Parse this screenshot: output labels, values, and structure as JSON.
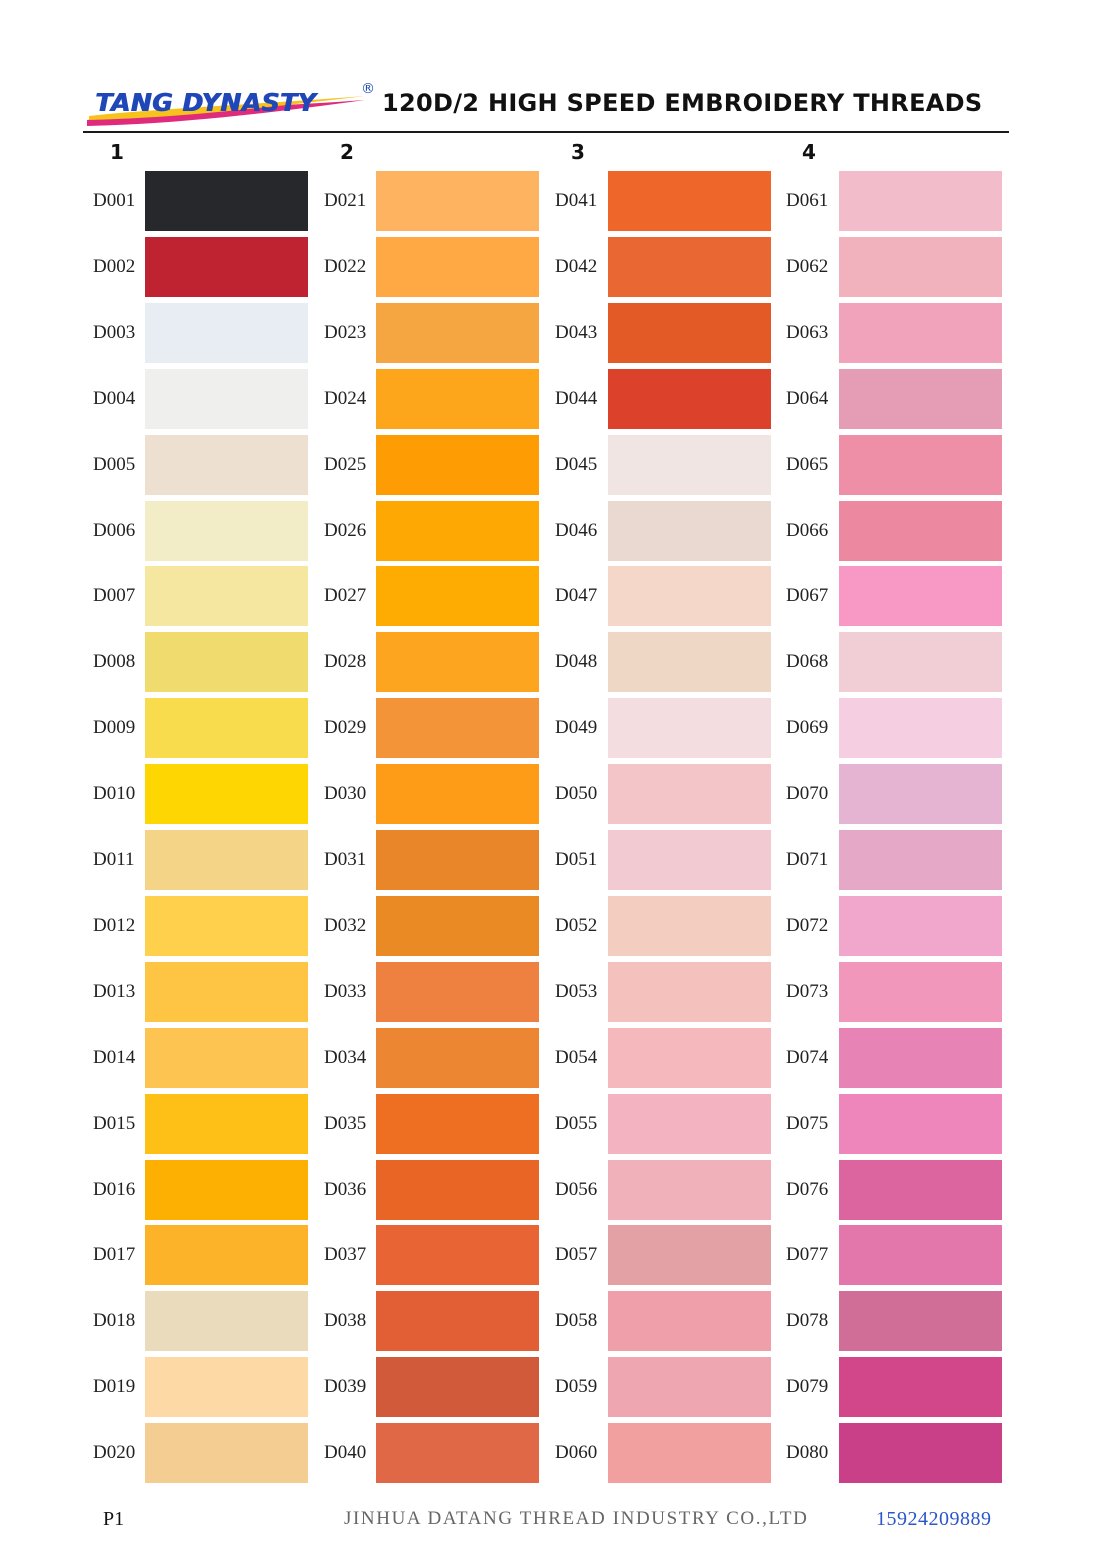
{
  "header": {
    "logo_text": "TANG DYNASTY",
    "registered_mark": "®",
    "title": "120D/2 HIGH SPEED EMBROIDERY THREADS"
  },
  "columns": [
    {
      "number": "1",
      "items": [
        {
          "code": "D001",
          "color": "#27282c"
        },
        {
          "code": "D002",
          "color": "#bf2231"
        },
        {
          "code": "D003",
          "color": "#e8edf3"
        },
        {
          "code": "D004",
          "color": "#efefed"
        },
        {
          "code": "D005",
          "color": "#ede0d0"
        },
        {
          "code": "D006",
          "color": "#f3edc7"
        },
        {
          "code": "D007",
          "color": "#f5e6a0"
        },
        {
          "code": "D008",
          "color": "#f0db6e"
        },
        {
          "code": "D009",
          "color": "#f9dc4d"
        },
        {
          "code": "D010",
          "color": "#fed602"
        },
        {
          "code": "D011",
          "color": "#f4d486"
        },
        {
          "code": "D012",
          "color": "#fed04c"
        },
        {
          "code": "D013",
          "color": "#fec545"
        },
        {
          "code": "D014",
          "color": "#fec452"
        },
        {
          "code": "D015",
          "color": "#fec017"
        },
        {
          "code": "D016",
          "color": "#feb002"
        },
        {
          "code": "D017",
          "color": "#fdb329"
        },
        {
          "code": "D018",
          "color": "#ebdbbd"
        },
        {
          "code": "D019",
          "color": "#fdd9a6"
        },
        {
          "code": "D020",
          "color": "#f3cd92"
        }
      ]
    },
    {
      "number": "2",
      "items": [
        {
          "code": "D021",
          "color": "#feb360"
        },
        {
          "code": "D022",
          "color": "#fea944"
        },
        {
          "code": "D023",
          "color": "#f6a640"
        },
        {
          "code": "D024",
          "color": "#fea61b"
        },
        {
          "code": "D025",
          "color": "#fe9d03"
        },
        {
          "code": "D026",
          "color": "#fea903"
        },
        {
          "code": "D027",
          "color": "#feab02"
        },
        {
          "code": "D028",
          "color": "#fea51f"
        },
        {
          "code": "D029",
          "color": "#f39439"
        },
        {
          "code": "D030",
          "color": "#fe9b17"
        },
        {
          "code": "D031",
          "color": "#e9862a"
        },
        {
          "code": "D032",
          "color": "#e98a25"
        },
        {
          "code": "D033",
          "color": "#ee8040"
        },
        {
          "code": "D034",
          "color": "#ec8632"
        },
        {
          "code": "D035",
          "color": "#ef6f22"
        },
        {
          "code": "D036",
          "color": "#e86526"
        },
        {
          "code": "D037",
          "color": "#e96434"
        },
        {
          "code": "D038",
          "color": "#e25e34"
        },
        {
          "code": "D039",
          "color": "#d15a3a"
        },
        {
          "code": "D040",
          "color": "#e06846"
        }
      ]
    },
    {
      "number": "3",
      "items": [
        {
          "code": "D041",
          "color": "#ef662a"
        },
        {
          "code": "D042",
          "color": "#e86732"
        },
        {
          "code": "D043",
          "color": "#e35a27"
        },
        {
          "code": "D044",
          "color": "#dc412c"
        },
        {
          "code": "D045",
          "color": "#f1e5e4"
        },
        {
          "code": "D046",
          "color": "#e9d9d1"
        },
        {
          "code": "D047",
          "color": "#f5d7c9"
        },
        {
          "code": "D048",
          "color": "#efd7c6"
        },
        {
          "code": "D049",
          "color": "#f4dde0"
        },
        {
          "code": "D050",
          "color": "#f3c5c9"
        },
        {
          "code": "D051",
          "color": "#f2cbd2"
        },
        {
          "code": "D052",
          "color": "#f3cdc0"
        },
        {
          "code": "D053",
          "color": "#f4c1bd"
        },
        {
          "code": "D054",
          "color": "#f4b8bd"
        },
        {
          "code": "D055",
          "color": "#f4b3c0"
        },
        {
          "code": "D056",
          "color": "#f1b1bb"
        },
        {
          "code": "D057",
          "color": "#e3a1a5"
        },
        {
          "code": "D058",
          "color": "#ee9faa"
        },
        {
          "code": "D059",
          "color": "#eea7b0"
        },
        {
          "code": "D060",
          "color": "#f29fa0"
        }
      ]
    },
    {
      "number": "4",
      "items": [
        {
          "code": "D061",
          "color": "#f3bcca"
        },
        {
          "code": "D062",
          "color": "#f1b2be"
        },
        {
          "code": "D063",
          "color": "#f1a3bb"
        },
        {
          "code": "D064",
          "color": "#e49db5"
        },
        {
          "code": "D065",
          "color": "#ee8ea7"
        },
        {
          "code": "D066",
          "color": "#ec89a1"
        },
        {
          "code": "D067",
          "color": "#f899c5"
        },
        {
          "code": "D068",
          "color": "#f1ced6"
        },
        {
          "code": "D069",
          "color": "#f5cfe1"
        },
        {
          "code": "D070",
          "color": "#e5b4d3"
        },
        {
          "code": "D071",
          "color": "#e5a8c6"
        },
        {
          "code": "D072",
          "color": "#f0a7cb"
        },
        {
          "code": "D073",
          "color": "#f097bb"
        },
        {
          "code": "D074",
          "color": "#e784b5"
        },
        {
          "code": "D075",
          "color": "#ee85bb"
        },
        {
          "code": "D076",
          "color": "#dc65a0"
        },
        {
          "code": "D077",
          "color": "#e376ab"
        },
        {
          "code": "D078",
          "color": "#d16e98"
        },
        {
          "code": "D079",
          "color": "#d2478a"
        },
        {
          "code": "D080",
          "color": "#c94089"
        }
      ]
    }
  ],
  "footer": {
    "page": "P1",
    "company": "JINHUA DATANG THREAD INDUSTRY CO.,LTD",
    "phone": "15924209889"
  }
}
